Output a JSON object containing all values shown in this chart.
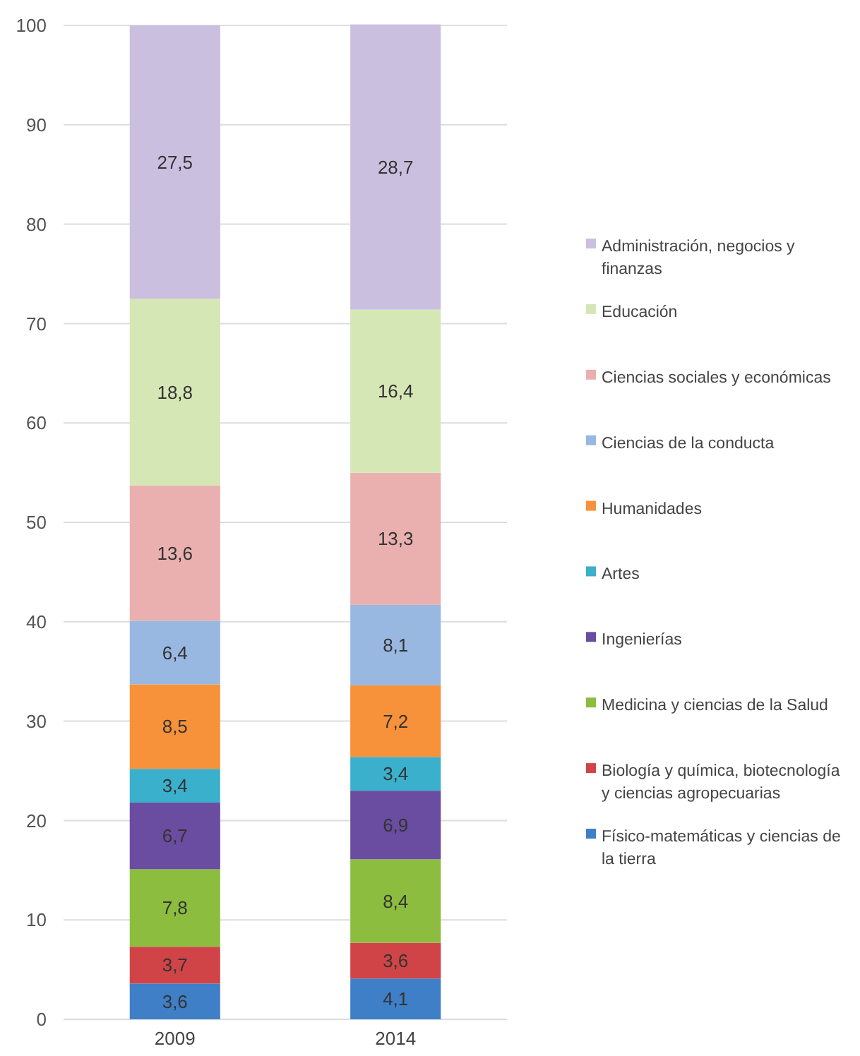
{
  "chart_data": {
    "type": "bar",
    "stacked": true,
    "categories": [
      "2009",
      "2014"
    ],
    "ylim": [
      0,
      100
    ],
    "yticks": [
      0,
      10,
      20,
      30,
      40,
      50,
      60,
      70,
      80,
      90,
      100
    ],
    "grid": "y",
    "legend": "right",
    "series": [
      {
        "name": "Físico-matemáticas y ciencias de la tierra",
        "color": "#3f7fc8",
        "values": [
          3.6,
          4.1
        ],
        "value_labels": [
          "3,6",
          "4,1"
        ]
      },
      {
        "name": "Biología y química, biotecnología y ciencias agropecuarias",
        "color": "#d04448",
        "values": [
          3.7,
          3.6
        ],
        "value_labels": [
          "3,7",
          "3,6"
        ]
      },
      {
        "name": "Medicina y ciencias de la Salud",
        "color": "#8cbd3f",
        "values": [
          7.8,
          8.4
        ],
        "value_labels": [
          "7,8",
          "8,4"
        ]
      },
      {
        "name": "Ingenierías",
        "color": "#6a4ca0",
        "values": [
          6.7,
          6.9
        ],
        "value_labels": [
          "6,7",
          "6,9"
        ]
      },
      {
        "name": "Artes",
        "color": "#3bb0cc",
        "values": [
          3.4,
          3.4
        ],
        "value_labels": [
          "3,4",
          "3,4"
        ]
      },
      {
        "name": "Humanidades",
        "color": "#f7923a",
        "values": [
          8.5,
          7.2
        ],
        "value_labels": [
          "8,5",
          "7,2"
        ]
      },
      {
        "name": "Ciencias de la conducta",
        "color": "#98b8e2",
        "values": [
          6.4,
          8.1
        ],
        "value_labels": [
          "6,4",
          "8,1"
        ]
      },
      {
        "name": "Ciencias sociales y económicas",
        "color": "#eab0b0",
        "values": [
          13.6,
          13.3
        ],
        "value_labels": [
          "13,6",
          "13,3"
        ]
      },
      {
        "name": "Educación",
        "color": "#d6e7b6",
        "values": [
          18.8,
          16.4
        ],
        "value_labels": [
          "18,8",
          "16,4"
        ]
      },
      {
        "name": "Administración, negocios y finanzas",
        "color": "#cbbfe0",
        "values": [
          27.5,
          28.7
        ],
        "value_labels": [
          "27,5",
          "28,7"
        ]
      }
    ]
  }
}
